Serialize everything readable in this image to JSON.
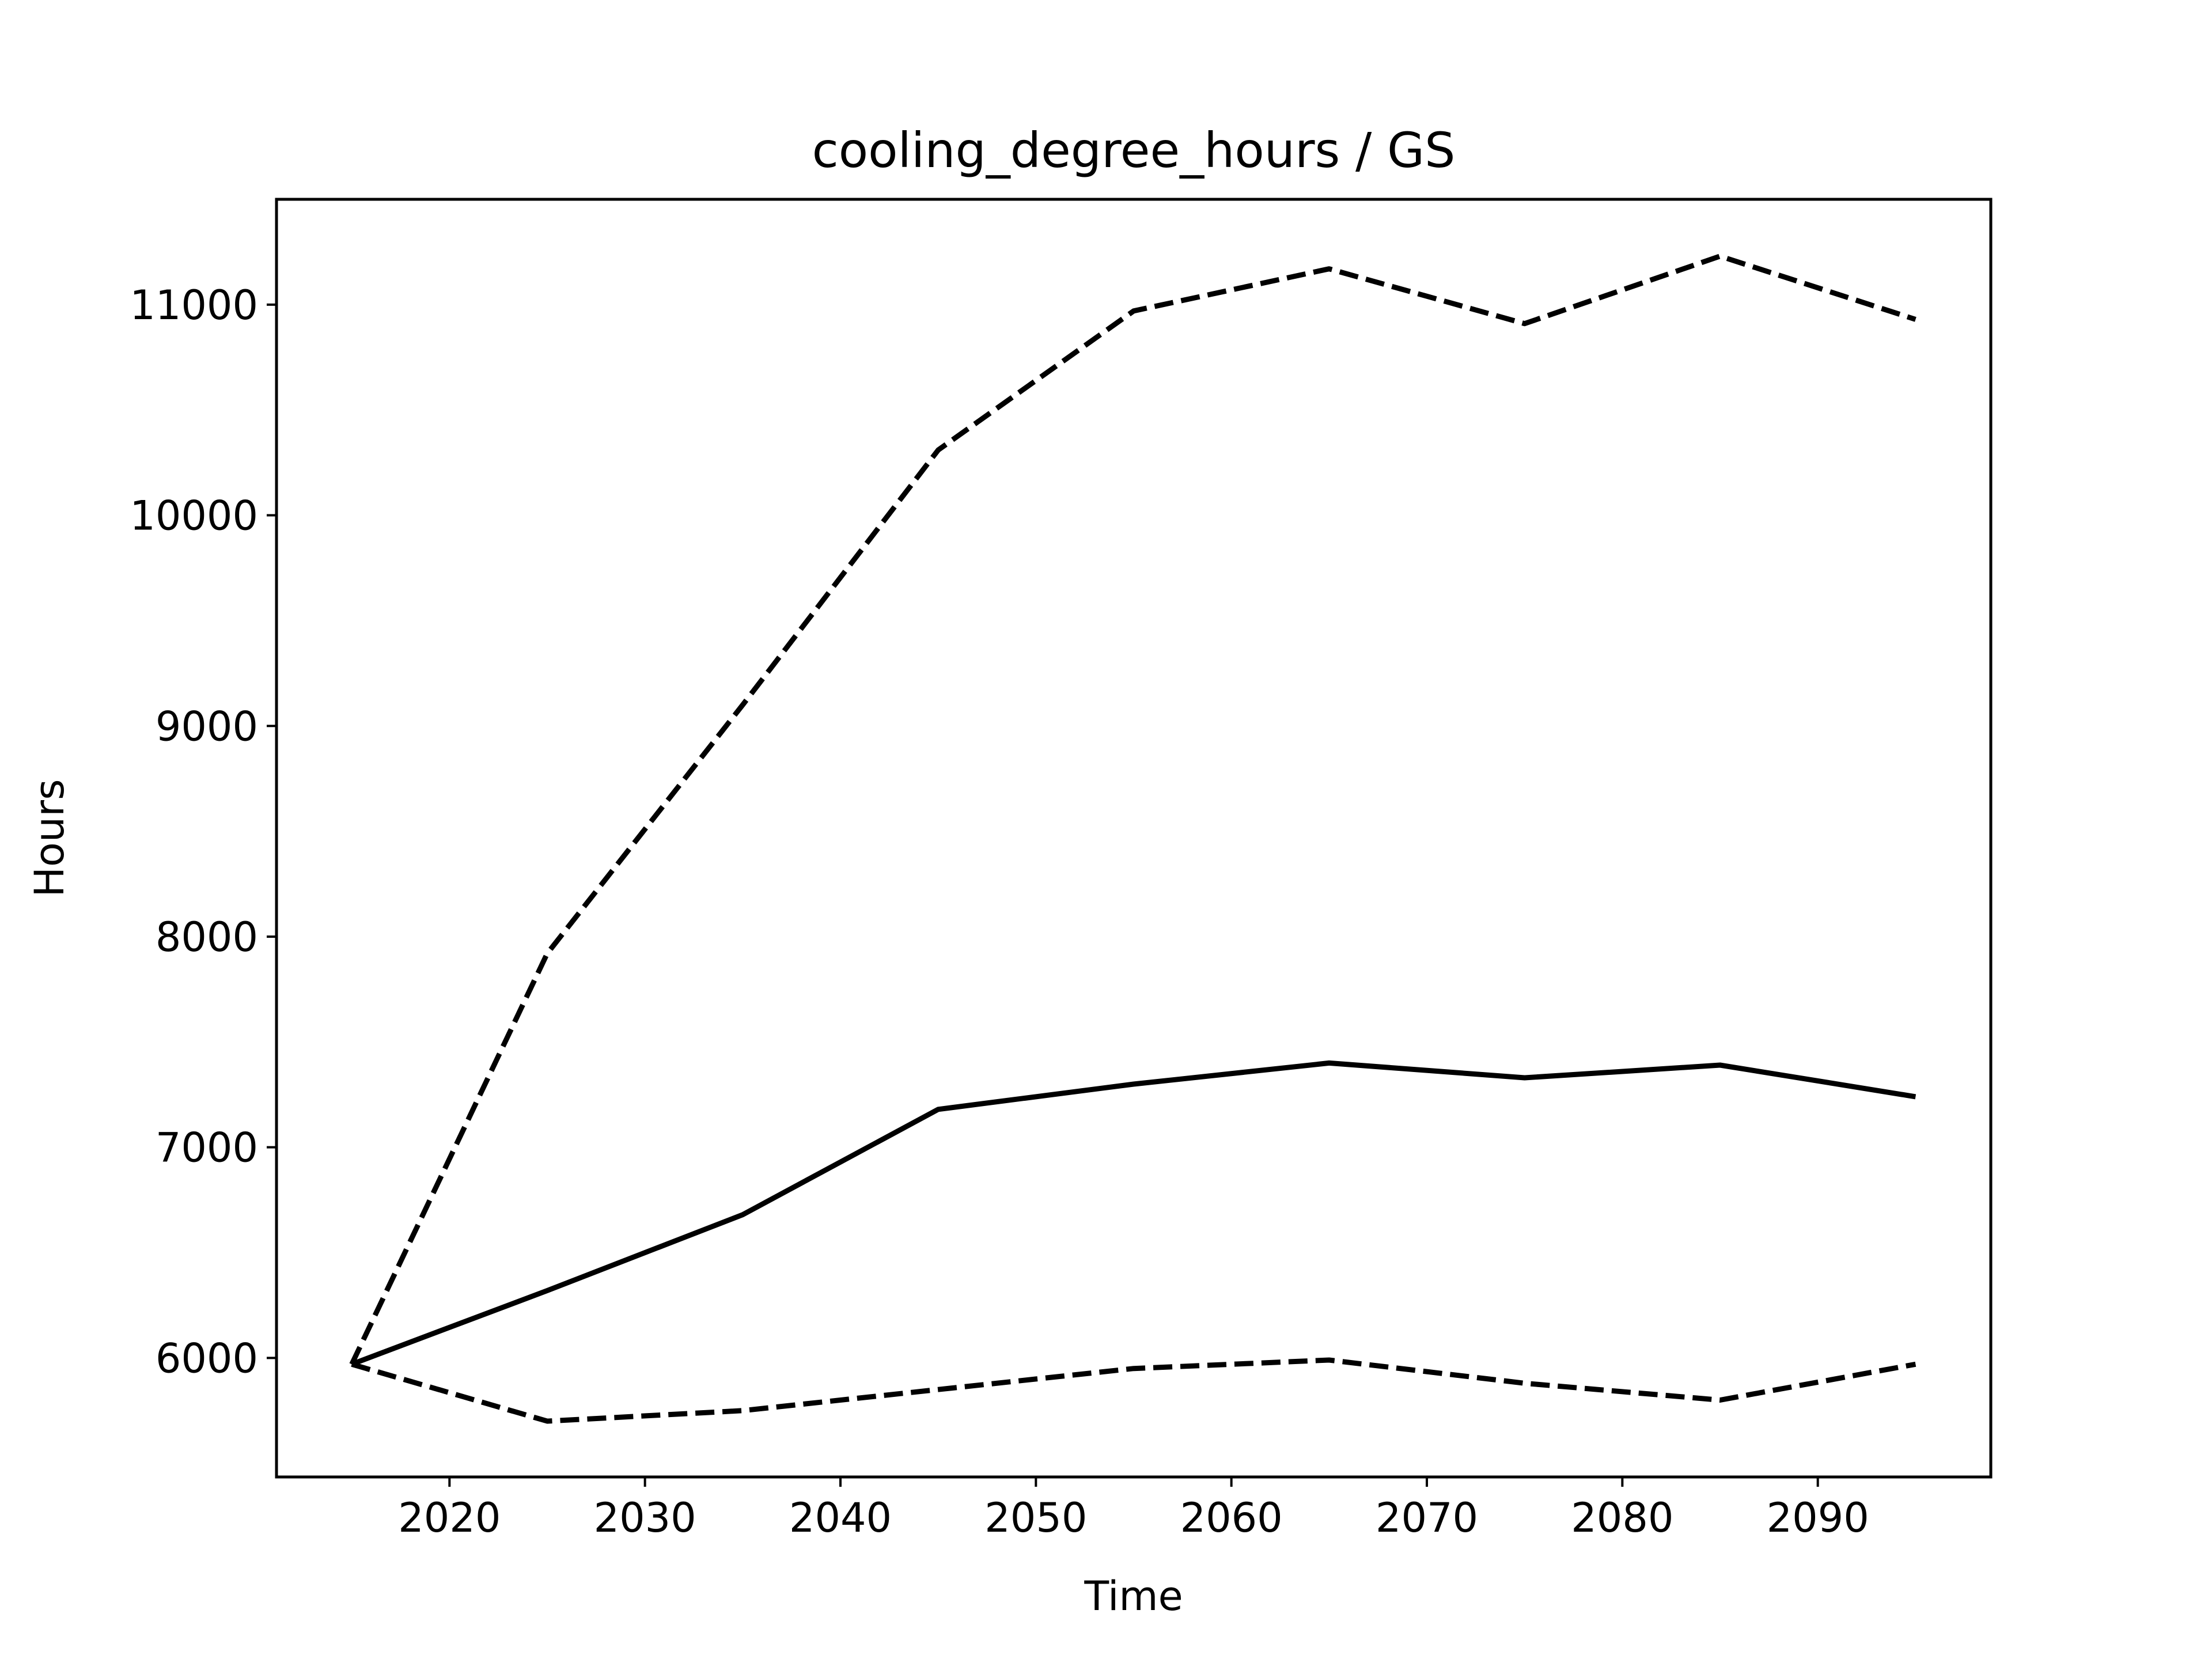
{
  "chart_data": {
    "type": "line",
    "title": "cooling_degree_hours / GS",
    "xlabel": "Time",
    "ylabel": "Hours",
    "xlim": [
      2011.15,
      2098.85
    ],
    "ylim": [
      5435,
      11500
    ],
    "x_ticks": [
      2020,
      2030,
      2040,
      2050,
      2060,
      2070,
      2080,
      2090
    ],
    "y_ticks": [
      6000,
      7000,
      8000,
      9000,
      10000,
      11000
    ],
    "grid": false,
    "legend": "none",
    "x": [
      2015,
      2025,
      2035,
      2045,
      2055,
      2065,
      2075,
      2085,
      2095
    ],
    "series": [
      {
        "style": "dashed",
        "color": "#000000",
        "values": [
          5970,
          7920,
          9100,
          10310,
          10970,
          11170,
          10910,
          11230,
          10930
        ]
      },
      {
        "style": "solid",
        "color": "#000000",
        "values": [
          5970,
          6320,
          6680,
          7180,
          7300,
          7400,
          7330,
          7390,
          7240
        ]
      },
      {
        "style": "dashed",
        "color": "#000000",
        "values": [
          5970,
          5700,
          5750,
          5850,
          5950,
          5990,
          5880,
          5800,
          5970
        ]
      }
    ]
  }
}
